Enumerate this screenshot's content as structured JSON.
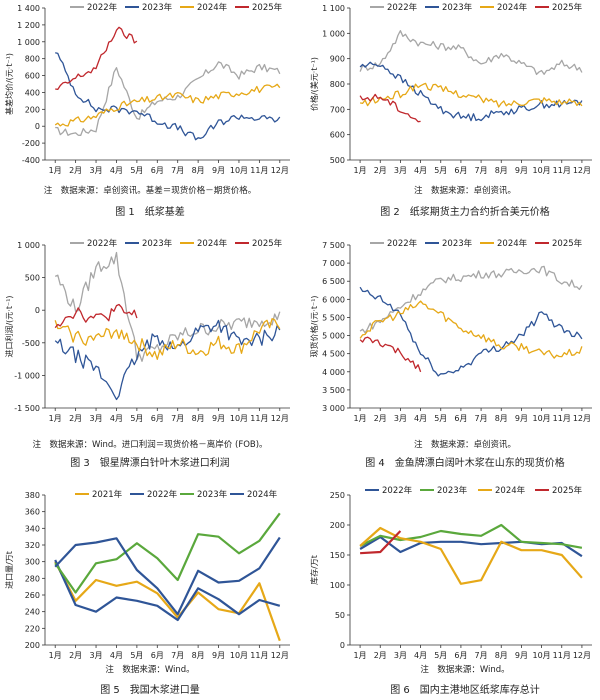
{
  "charts": [
    {
      "id": "fig1",
      "caption": "图 1　纸浆基差",
      "note": "注　数据来源：卓创资讯。基差＝现货价格－期货价格。",
      "ylabel": "基差均价/(元·t⁻¹)",
      "legend": [
        "2022年",
        "2023年",
        "2024年",
        "2025年"
      ],
      "yticks": [
        "1 400",
        "1 200",
        "1 000",
        "800",
        "600",
        "400",
        "200",
        "0",
        "-200",
        "-400"
      ],
      "xticks": [
        "1月",
        "2月",
        "3月",
        "4月",
        "5月",
        "6月",
        "7月",
        "8月",
        "9月",
        "10月",
        "11月",
        "12月"
      ]
    },
    {
      "id": "fig2",
      "caption": "图 2　纸浆期货主力合约折合美元价格",
      "note": "注　数据来源：卓创资讯。",
      "ylabel": "价格/(美元·t⁻¹)",
      "legend": [
        "2022年",
        "2023年",
        "2024年",
        "2025年"
      ],
      "yticks": [
        "1 100",
        "1 000",
        "900",
        "800",
        "700",
        "600",
        "500"
      ],
      "xticks": [
        "1月",
        "2月",
        "3月",
        "4月",
        "5月",
        "6月",
        "7月",
        "8月",
        "9月",
        "10月",
        "11月",
        "12月"
      ]
    },
    {
      "id": "fig3",
      "caption": "图 3　银星牌漂白针叶木浆进口利润",
      "note": "注　数据来源：Wind。进口利润＝现货价格－离岸价 (FOB)。",
      "ylabel": "进口利润/(元·t⁻¹)",
      "legend": [
        "2022年",
        "2023年",
        "2024年",
        "2025年"
      ],
      "yticks": [
        "1 000",
        "500",
        "0",
        "-500",
        "-1 000",
        "-1 500"
      ],
      "xticks": [
        "1月",
        "2月",
        "3月",
        "4月",
        "5月",
        "6月",
        "7月",
        "8月",
        "9月",
        "10月",
        "11月",
        "12月"
      ]
    },
    {
      "id": "fig4",
      "caption": "图 4　金鱼牌漂白阔叶木浆在山东的现货价格",
      "note": "注　数据来源：卓创资讯。",
      "ylabel": "现货价格/(元·t⁻¹)",
      "legend": [
        "2022年",
        "2023年",
        "2024年",
        "2025年"
      ],
      "yticks": [
        "7 500",
        "7 000",
        "6 500",
        "6 000",
        "5 500",
        "5 000",
        "4 500",
        "4 000",
        "3 500",
        "3 000"
      ],
      "xticks": [
        "1月",
        "2月",
        "3月",
        "4月",
        "5月",
        "6月",
        "7月",
        "8月",
        "9月",
        "10月",
        "11月",
        "12月"
      ]
    },
    {
      "id": "fig5",
      "caption": "图 5　我国木浆进口量",
      "note": "注　数据来源：Wind。",
      "ylabel": "进口量/万t",
      "legend": [
        "2021年",
        "2022年",
        "2023年",
        "2024年"
      ],
      "yticks": [
        "380",
        "360",
        "340",
        "320",
        "300",
        "280",
        "260",
        "240",
        "220",
        "200"
      ],
      "xticks": [
        "1月",
        "2月",
        "3月",
        "4月",
        "5月",
        "6月",
        "7月",
        "8月",
        "9月",
        "10月",
        "11月",
        "12月"
      ]
    },
    {
      "id": "fig6",
      "caption": "图 6　国内主港地区纸浆库存总计",
      "note": "注　数据来源：Wind。",
      "ylabel": "库存/万t",
      "legend": [
        "2022年",
        "2023年",
        "2024年",
        "2025年"
      ],
      "yticks": [
        "250",
        "200",
        "150",
        "100",
        "50",
        "0"
      ],
      "xticks": [
        "1月",
        "2月",
        "3月",
        "4月",
        "5月",
        "6月",
        "7月",
        "8月",
        "9月",
        "10月",
        "11月",
        "12月"
      ]
    }
  ],
  "colors": {
    "y2021": "#e6a817",
    "y2022": "#a6a6a6",
    "y2023": "#2f5597",
    "y2024": "#e6a817",
    "y2025": "#c0282d",
    "fig5_2021": "#e6a817",
    "fig5_2022": "#2f5597",
    "fig5_2023": "#5aa83c",
    "fig5_2024": "#2f5597",
    "fig6_2022": "#2f5597",
    "fig6_2023": "#5aa83c",
    "fig6_2024": "#e6a817",
    "fig6_2025": "#c0282d"
  },
  "chart_data": [
    {
      "type": "line",
      "title": "图 1　纸浆基差",
      "ylabel": "基差均价/(元·t⁻¹)",
      "ylim": [
        -400,
        1400
      ],
      "x": [
        1,
        2,
        3,
        4,
        5,
        6,
        7,
        8,
        9,
        10,
        11,
        12
      ],
      "series": [
        {
          "name": "2022年",
          "values": [
            -50,
            -90,
            -30,
            700,
            100,
            300,
            350,
            550,
            750,
            600,
            700,
            650
          ]
        },
        {
          "name": "2023年",
          "values": [
            900,
            400,
            200,
            200,
            180,
            60,
            -20,
            -160,
            40,
            120,
            90,
            80
          ]
        },
        {
          "name": "2024年",
          "values": [
            20,
            60,
            120,
            230,
            290,
            330,
            370,
            300,
            360,
            400,
            440,
            460
          ]
        },
        {
          "name": "2025年",
          "values": [
            420,
            570,
            690,
            1150,
            1000,
            null,
            null,
            null,
            null,
            null,
            null,
            null
          ]
        }
      ]
    },
    {
      "type": "line",
      "title": "图 2　纸浆期货主力合约折合美元价格",
      "ylabel": "价格/(美元·t⁻¹)",
      "ylim": [
        500,
        1100
      ],
      "x": [
        1,
        2,
        3,
        4,
        5,
        6,
        7,
        8,
        9,
        10,
        11,
        12
      ],
      "series": [
        {
          "name": "2022年",
          "values": [
            860,
            880,
            1000,
            960,
            950,
            940,
            880,
            920,
            880,
            840,
            880,
            860
          ]
        },
        {
          "name": "2023年",
          "values": [
            870,
            880,
            820,
            760,
            700,
            670,
            670,
            690,
            700,
            720,
            720,
            730
          ]
        },
        {
          "name": "2024年",
          "values": [
            720,
            740,
            760,
            800,
            780,
            760,
            740,
            720,
            730,
            740,
            730,
            720
          ]
        },
        {
          "name": "2025年",
          "values": [
            740,
            750,
            700,
            650,
            null,
            null,
            null,
            null,
            null,
            null,
            null,
            null
          ]
        }
      ]
    },
    {
      "type": "line",
      "title": "图 3　银星牌漂白针叶木浆进口利润",
      "ylabel": "进口利润/(元·t⁻¹)",
      "ylim": [
        -1500,
        1000
      ],
      "x": [
        1,
        2,
        3,
        4,
        5,
        6,
        7,
        8,
        9,
        10,
        11,
        12
      ],
      "series": [
        {
          "name": "2022年",
          "values": [
            550,
            0,
            650,
            800,
            -700,
            -600,
            -400,
            -300,
            -250,
            -200,
            -150,
            -100
          ]
        },
        {
          "name": "2023年",
          "values": [
            -500,
            -700,
            -900,
            -1300,
            -700,
            -400,
            -600,
            -300,
            -200,
            -500,
            -450,
            -300
          ]
        },
        {
          "name": "2024年",
          "values": [
            -250,
            -400,
            -450,
            -300,
            -500,
            -700,
            -500,
            -650,
            -500,
            -600,
            -300,
            -200
          ]
        },
        {
          "name": "2025年",
          "values": [
            -200,
            0,
            -150,
            0,
            -100,
            null,
            null,
            null,
            null,
            null,
            null,
            null
          ]
        }
      ]
    },
    {
      "type": "line",
      "title": "图 4　金鱼牌漂白阔叶木浆在山东的现货价格",
      "ylabel": "现货价格/(元·t⁻¹)",
      "ylim": [
        3000,
        7500
      ],
      "x": [
        1,
        2,
        3,
        4,
        5,
        6,
        7,
        8,
        9,
        10,
        11,
        12
      ],
      "series": [
        {
          "name": "2022年",
          "values": [
            5100,
            5400,
            5800,
            6200,
            6550,
            6600,
            6700,
            6700,
            6800,
            6850,
            6500,
            6350
          ]
        },
        {
          "name": "2023年",
          "values": [
            6250,
            6000,
            5600,
            4500,
            3900,
            4100,
            4500,
            4700,
            5000,
            5600,
            5200,
            4950
          ]
        },
        {
          "name": "2024年",
          "values": [
            5000,
            5400,
            5600,
            5900,
            5600,
            5200,
            5000,
            4700,
            4700,
            4500,
            4450,
            4600
          ]
        },
        {
          "name": "2025年",
          "values": [
            4900,
            4800,
            4500,
            4100,
            null,
            null,
            null,
            null,
            null,
            null,
            null,
            null
          ]
        }
      ]
    },
    {
      "type": "line",
      "title": "图 5　我国木浆进口量",
      "ylabel": "进口量/万t",
      "ylim": [
        200,
        380
      ],
      "x": [
        1,
        2,
        3,
        4,
        5,
        6,
        7,
        8,
        9,
        10,
        11,
        12
      ],
      "series": [
        {
          "name": "2021年",
          "values": [
            300,
            253,
            278,
            271,
            276,
            262,
            233,
            263,
            243,
            238,
            274,
            205
          ]
        },
        {
          "name": "2022年",
          "values": [
            302,
            248,
            240,
            257,
            253,
            247,
            230,
            268,
            255,
            237,
            254,
            247
          ]
        },
        {
          "name": "2023年",
          "values": [
            298,
            263,
            298,
            303,
            322,
            304,
            278,
            333,
            330,
            310,
            325,
            358
          ]
        },
        {
          "name": "2024年",
          "values": [
            294,
            320,
            323,
            328,
            290,
            268,
            237,
            289,
            275,
            277,
            292,
            329
          ]
        }
      ]
    },
    {
      "type": "line",
      "title": "图 6　国内主港地区纸浆库存总计",
      "ylabel": "库存/万t",
      "ylim": [
        0,
        250
      ],
      "x": [
        1,
        2,
        3,
        4,
        5,
        6,
        7,
        8,
        9,
        10,
        11,
        12
      ],
      "series": [
        {
          "name": "2022年",
          "values": [
            160,
            180,
            155,
            170,
            172,
            172,
            168,
            170,
            172,
            168,
            170,
            148
          ]
        },
        {
          "name": "2023年",
          "values": [
            165,
            182,
            175,
            180,
            190,
            185,
            182,
            200,
            172,
            170,
            168,
            162
          ]
        },
        {
          "name": "2024年",
          "values": [
            165,
            195,
            178,
            172,
            160,
            102,
            108,
            172,
            158,
            158,
            150,
            112
          ]
        },
        {
          "name": "2025年",
          "values": [
            153,
            155,
            190,
            null,
            null,
            null,
            null,
            null,
            null,
            null,
            null,
            null
          ]
        }
      ]
    }
  ]
}
